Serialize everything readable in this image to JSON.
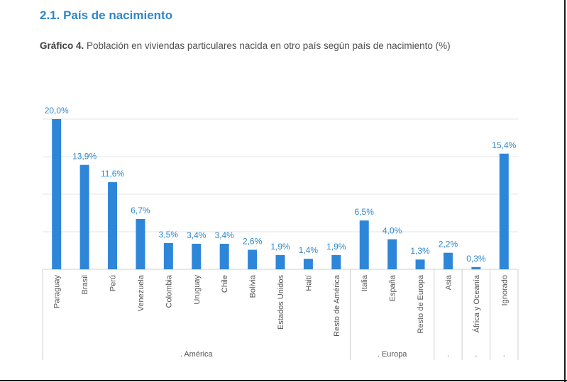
{
  "section": {
    "title": "2.1. País de nacimiento"
  },
  "caption": {
    "label": "Gráfico 4.",
    "text": "Población en viviendas particulares nacida en otro país según país de nacimiento (%)"
  },
  "colors": {
    "bar": "#2e86d9",
    "label": "#2e86c9",
    "grid": "#e4e4e4",
    "text": "#555555"
  },
  "chart_data": {
    "type": "bar",
    "title": "",
    "xlabel": "",
    "ylabel": "",
    "ylim": [
      0,
      20
    ],
    "grid": true,
    "categories": [
      "Paraguay",
      "Brasil",
      "Perú",
      "Venezuela",
      "Colombia",
      "Uruguay",
      "Chile",
      "Bolivia",
      "Estados Unidos",
      "Haití",
      "Resto de América",
      "Italia",
      "España",
      "Resto de Europa",
      "Asia",
      "África y Oceanía",
      "Ignorado"
    ],
    "values": [
      20.0,
      13.9,
      11.6,
      6.7,
      3.5,
      3.4,
      3.4,
      2.6,
      1.9,
      1.4,
      1.9,
      6.5,
      4.0,
      1.3,
      2.2,
      0.3,
      15.4
    ],
    "data_labels": [
      "20,0%",
      "13,9%",
      "11,6%",
      "6,7%",
      "3,5%",
      "3,4%",
      "3,4%",
      "2,6%",
      "1,9%",
      "1,4%",
      "1,9%",
      "6,5%",
      "4,0%",
      "1,3%",
      "2,2%",
      "0,3%",
      "15,4%"
    ],
    "groups": [
      {
        "label": ". América",
        "count": 11
      },
      {
        "label": ". Europa",
        "count": 3
      },
      {
        "label": ".",
        "count": 1
      },
      {
        "label": ".",
        "count": 1
      },
      {
        "label": ".",
        "count": 1
      }
    ]
  }
}
